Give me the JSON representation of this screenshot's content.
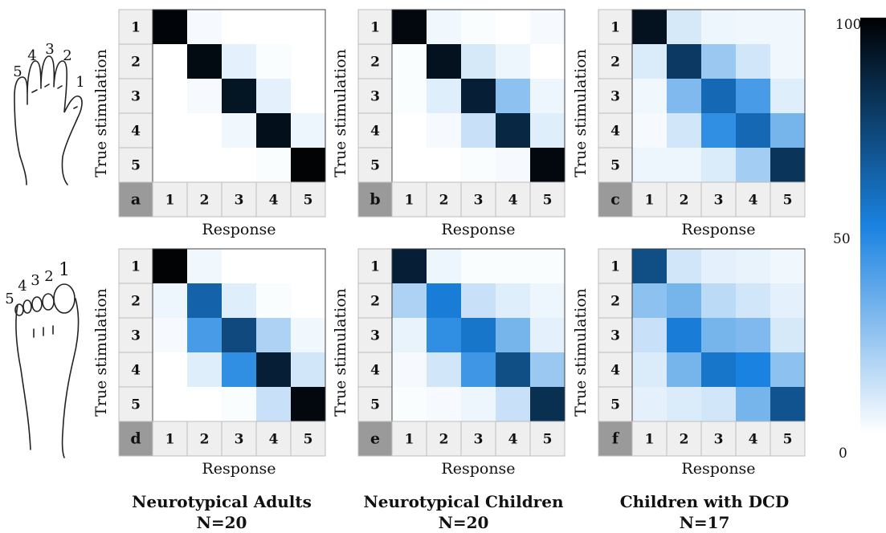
{
  "colorbar": {
    "max_label": "100",
    "mid_label": "50",
    "min_label": "0",
    "range": [
      0,
      100
    ],
    "colors": {
      "low": "#ffffff",
      "mid": "#1a82e0",
      "high": "#000000"
    }
  },
  "row_icons": [
    {
      "name": "hand-icon",
      "digit_labels": [
        "5",
        "4",
        "3",
        "2",
        "1"
      ]
    },
    {
      "name": "foot-icon",
      "digit_labels": [
        "5",
        "4",
        "3",
        "2",
        "1"
      ]
    }
  ],
  "groups": [
    {
      "title": "Neurotypical Adults",
      "n": "N=20"
    },
    {
      "title": "Neurotypical Children",
      "n": "N=20"
    },
    {
      "title": "Children with DCD",
      "n": "N=17"
    }
  ],
  "chart_data": [
    {
      "type": "heatmap",
      "panel_label": "a",
      "body_part": "hand",
      "group": "Neurotypical Adults",
      "xlabel": "Response",
      "ylabel": "True stimulation",
      "x_categories": [
        "1",
        "2",
        "3",
        "4",
        "5"
      ],
      "y_categories": [
        "1",
        "2",
        "3",
        "4",
        "5"
      ],
      "zlim": [
        0,
        100
      ],
      "values": [
        [
          98,
          2,
          0,
          0,
          0
        ],
        [
          0,
          96,
          6,
          1,
          0
        ],
        [
          0,
          2,
          92,
          6,
          0
        ],
        [
          0,
          0,
          3,
          94,
          4
        ],
        [
          0,
          0,
          0,
          1,
          99
        ]
      ]
    },
    {
      "type": "heatmap",
      "panel_label": "b",
      "body_part": "hand",
      "group": "Neurotypical Children",
      "xlabel": "Response",
      "ylabel": "True stimulation",
      "x_categories": [
        "1",
        "2",
        "3",
        "4",
        "5"
      ],
      "y_categories": [
        "1",
        "2",
        "3",
        "4",
        "5"
      ],
      "zlim": [
        0,
        100
      ],
      "values": [
        [
          97,
          3,
          1,
          0,
          2
        ],
        [
          1,
          93,
          9,
          4,
          0
        ],
        [
          1,
          7,
          88,
          25,
          4
        ],
        [
          0,
          2,
          12,
          85,
          7
        ],
        [
          0,
          0,
          1,
          2,
          97
        ]
      ]
    },
    {
      "type": "heatmap",
      "panel_label": "c",
      "body_part": "hand",
      "group": "Children with DCD",
      "xlabel": "Response",
      "ylabel": "True stimulation",
      "x_categories": [
        "1",
        "2",
        "3",
        "4",
        "5"
      ],
      "y_categories": [
        "1",
        "2",
        "3",
        "4",
        "5"
      ],
      "zlim": [
        0,
        100
      ],
      "values": [
        [
          93,
          9,
          4,
          3,
          3
        ],
        [
          8,
          78,
          22,
          10,
          3
        ],
        [
          3,
          28,
          60,
          40,
          7
        ],
        [
          2,
          10,
          45,
          60,
          30
        ],
        [
          4,
          4,
          8,
          20,
          80
        ]
      ]
    },
    {
      "type": "heatmap",
      "panel_label": "d",
      "body_part": "foot",
      "group": "Neurotypical Adults",
      "xlabel": "Response",
      "ylabel": "True stimulation",
      "x_categories": [
        "1",
        "2",
        "3",
        "4",
        "5"
      ],
      "y_categories": [
        "1",
        "2",
        "3",
        "4",
        "5"
      ],
      "zlim": [
        0,
        100
      ],
      "values": [
        [
          99,
          3,
          0,
          0,
          0
        ],
        [
          4,
          62,
          7,
          1,
          0
        ],
        [
          2,
          40,
          72,
          18,
          3
        ],
        [
          0,
          7,
          45,
          88,
          10
        ],
        [
          0,
          0,
          1,
          12,
          97
        ]
      ]
    },
    {
      "type": "heatmap",
      "panel_label": "e",
      "body_part": "foot",
      "group": "Neurotypical Children",
      "xlabel": "Response",
      "ylabel": "True stimulation",
      "x_categories": [
        "1",
        "2",
        "3",
        "4",
        "5"
      ],
      "y_categories": [
        "1",
        "2",
        "3",
        "4",
        "5"
      ],
      "zlim": [
        0,
        100
      ],
      "values": [
        [
          88,
          4,
          1,
          1,
          1
        ],
        [
          18,
          52,
          12,
          7,
          4
        ],
        [
          5,
          45,
          55,
          30,
          6
        ],
        [
          2,
          10,
          42,
          70,
          22
        ],
        [
          1,
          2,
          4,
          12,
          82
        ]
      ]
    },
    {
      "type": "heatmap",
      "panel_label": "f",
      "body_part": "foot",
      "group": "Children with DCD",
      "xlabel": "Response",
      "ylabel": "True stimulation",
      "x_categories": [
        "1",
        "2",
        "3",
        "4",
        "5"
      ],
      "y_categories": [
        "1",
        "2",
        "3",
        "4",
        "5"
      ],
      "zlim": [
        0,
        100
      ],
      "values": [
        [
          70,
          10,
          6,
          5,
          3
        ],
        [
          25,
          30,
          15,
          10,
          6
        ],
        [
          12,
          52,
          30,
          28,
          9
        ],
        [
          8,
          30,
          55,
          50,
          25
        ],
        [
          6,
          8,
          10,
          30,
          68
        ]
      ]
    }
  ]
}
